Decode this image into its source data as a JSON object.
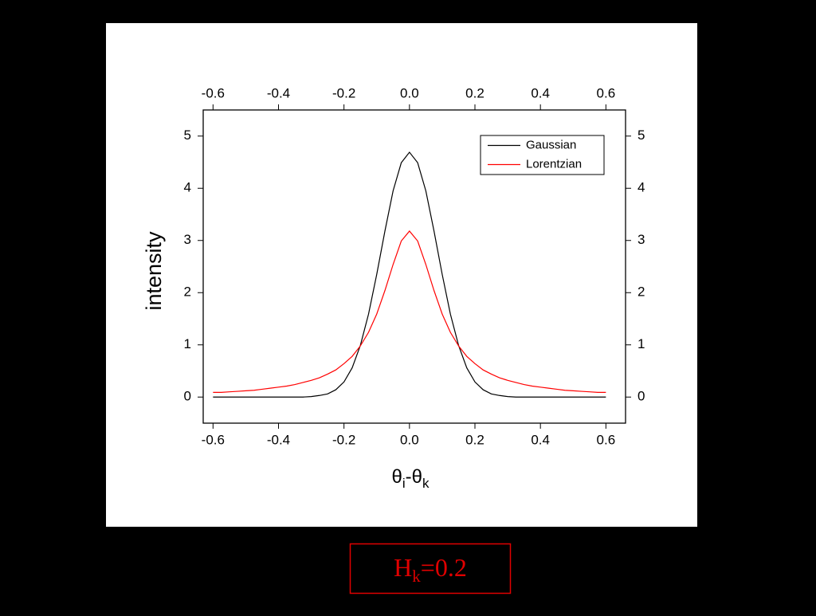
{
  "chart_data": {
    "type": "line",
    "ylabel": "intensity",
    "xlabel": [
      {
        "text": "θ"
      },
      {
        "sub": "i"
      },
      {
        "text": "-θ"
      },
      {
        "sub": "k"
      }
    ],
    "x": [
      -0.6,
      -0.575,
      -0.55,
      -0.525,
      -0.5,
      -0.475,
      -0.45,
      -0.425,
      -0.4,
      -0.375,
      -0.35,
      -0.325,
      -0.3,
      -0.275,
      -0.25,
      -0.225,
      -0.2,
      -0.175,
      -0.15,
      -0.125,
      -0.1,
      -0.075,
      -0.05,
      -0.025,
      0,
      0.025,
      0.05,
      0.075,
      0.1,
      0.125,
      0.15,
      0.175,
      0.2,
      0.225,
      0.25,
      0.275,
      0.3,
      0.325,
      0.35,
      0.375,
      0.4,
      0.425,
      0.45,
      0.475,
      0.5,
      0.525,
      0.55,
      0.575,
      0.6
    ],
    "series": [
      {
        "name": "Gaussian",
        "color": "#000000",
        "values": [
          0,
          0,
          0,
          0,
          0,
          0,
          0,
          0,
          0,
          0,
          0,
          0,
          0.01,
          0.03,
          0.06,
          0.14,
          0.29,
          0.56,
          0.99,
          1.59,
          2.35,
          3.18,
          3.95,
          4.49,
          4.69,
          4.49,
          3.95,
          3.18,
          2.35,
          1.59,
          0.99,
          0.56,
          0.29,
          0.14,
          0.06,
          0.03,
          0.01,
          0,
          0,
          0,
          0,
          0,
          0,
          0,
          0,
          0,
          0,
          0,
          0
        ]
      },
      {
        "name": "Lorentzian",
        "color": "#ff0000",
        "values": [
          0.09,
          0.09,
          0.1,
          0.11,
          0.12,
          0.13,
          0.15,
          0.17,
          0.19,
          0.21,
          0.24,
          0.28,
          0.32,
          0.37,
          0.44,
          0.52,
          0.64,
          0.78,
          0.98,
          1.24,
          1.59,
          2.04,
          2.54,
          2.99,
          3.18,
          2.99,
          2.54,
          2.04,
          1.59,
          1.24,
          0.98,
          0.78,
          0.64,
          0.52,
          0.44,
          0.37,
          0.32,
          0.28,
          0.24,
          0.21,
          0.19,
          0.17,
          0.15,
          0.13,
          0.12,
          0.11,
          0.1,
          0.09,
          0.09
        ]
      }
    ],
    "xlim": [
      -0.63,
      0.66
    ],
    "xticks": [
      {
        "value": -0.6,
        "label": "-0.6"
      },
      {
        "value": -0.4,
        "label": "-0.4"
      },
      {
        "value": -0.2,
        "label": "-0.2"
      },
      {
        "value": 0,
        "label": "0.0"
      },
      {
        "value": 0.2,
        "label": "0.2"
      },
      {
        "value": 0.4,
        "label": "0.4"
      },
      {
        "value": 0.6,
        "label": "0.6"
      }
    ],
    "ylim": [
      -0.5,
      5.5
    ],
    "yticks": [
      0,
      1,
      2,
      3,
      4,
      5
    ],
    "legend": "upper right",
    "caption": {
      "text": "H",
      "sub": "k",
      "rest": "=0.2"
    }
  }
}
